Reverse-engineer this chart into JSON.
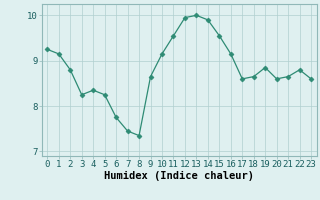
{
  "x": [
    0,
    1,
    2,
    3,
    4,
    5,
    6,
    7,
    8,
    9,
    10,
    11,
    12,
    13,
    14,
    15,
    16,
    17,
    18,
    19,
    20,
    21,
    22,
    23
  ],
  "y": [
    9.25,
    9.15,
    8.8,
    8.25,
    8.35,
    8.25,
    7.75,
    7.45,
    7.35,
    8.65,
    9.15,
    9.55,
    9.95,
    10.0,
    9.9,
    9.55,
    9.15,
    8.6,
    8.65,
    8.85,
    8.6,
    8.65,
    8.8,
    8.6
  ],
  "line_color": "#2e8b74",
  "marker": "D",
  "marker_size": 2.5,
  "bg_color": "#dff0f0",
  "grid_color": "#b0d0d0",
  "xlabel": "Humidex (Indice chaleur)",
  "xlabel_fontsize": 7.5,
  "ylim": [
    6.9,
    10.25
  ],
  "xlim": [
    -0.5,
    23.5
  ],
  "yticks": [
    7,
    8,
    9,
    10
  ],
  "xticks": [
    0,
    1,
    2,
    3,
    4,
    5,
    6,
    7,
    8,
    9,
    10,
    11,
    12,
    13,
    14,
    15,
    16,
    17,
    18,
    19,
    20,
    21,
    22,
    23
  ],
  "tick_fontsize": 6.5
}
